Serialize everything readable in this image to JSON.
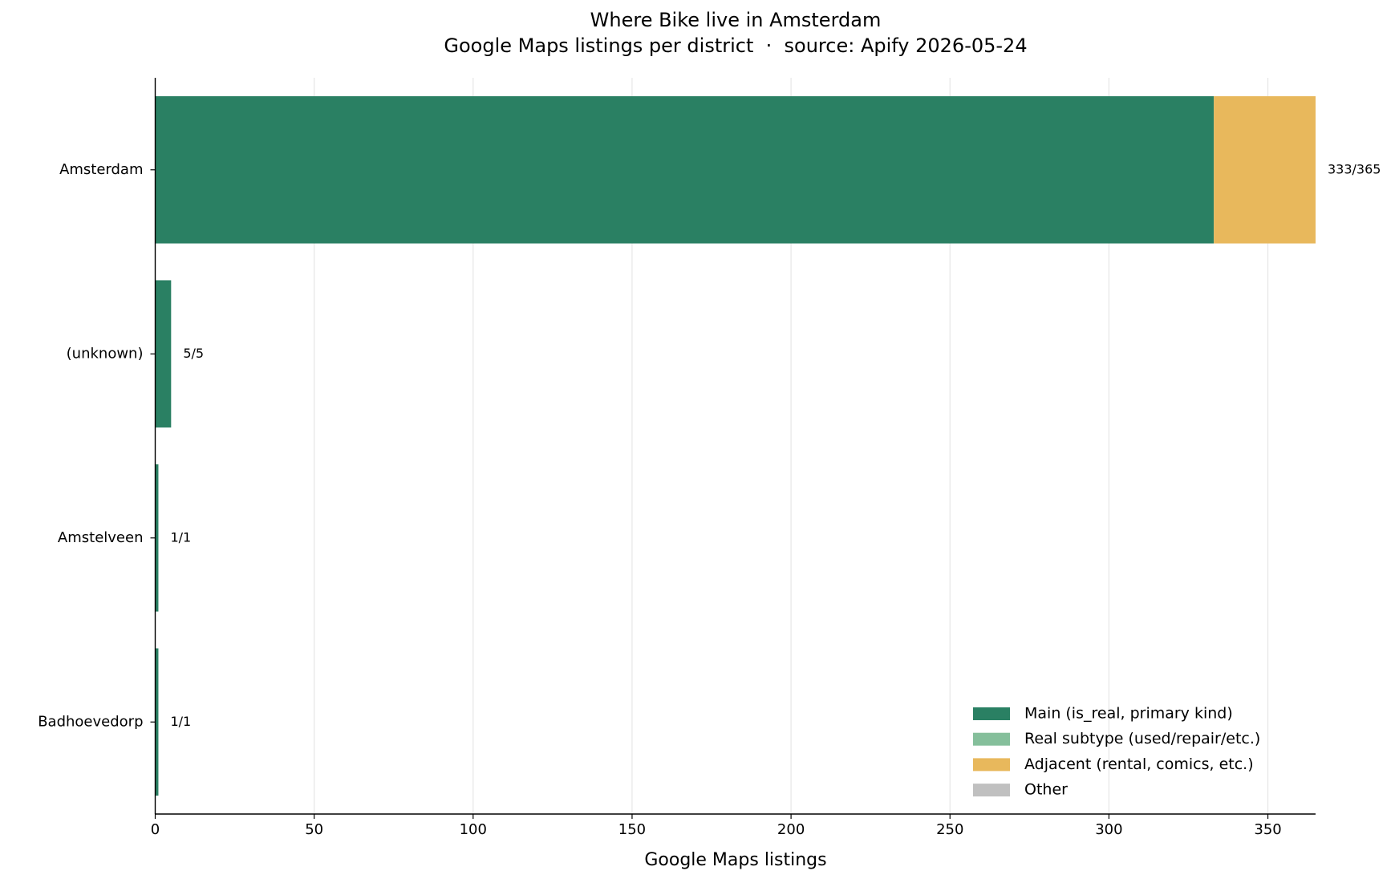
{
  "chart_data": {
    "type": "stacked_barh",
    "title": "Where Bike live in Amsterdam",
    "subtitle": "Google Maps listings per district  ·  source: Apify 2026-05-24",
    "x_label": "Google Maps listings",
    "categories": [
      "Amsterdam",
      "(unknown)",
      "Amstelveen",
      "Badhoevedorp"
    ],
    "series": [
      {
        "name": "Main (is_real, primary kind)",
        "color": "#2a8063",
        "values": [
          333,
          5,
          1,
          1
        ]
      },
      {
        "name": "Real subtype (used/repair/etc.)",
        "color": "#85bf9b",
        "values": [
          0,
          0,
          0,
          0
        ]
      },
      {
        "name": "Adjacent (rental, comics, etc.)",
        "color": "#e8b85c",
        "values": [
          32,
          0,
          0,
          0
        ]
      },
      {
        "name": "Other",
        "color": "#c0c0c0",
        "values": [
          0,
          0,
          0,
          0
        ]
      }
    ],
    "bar_labels": [
      "333/365",
      "5/5",
      "1/1",
      "1/1"
    ],
    "xlim": [
      0,
      365
    ],
    "xticks": [
      0,
      50,
      100,
      150,
      200,
      250,
      300,
      350
    ],
    "grid": true,
    "legend": "lower right"
  }
}
